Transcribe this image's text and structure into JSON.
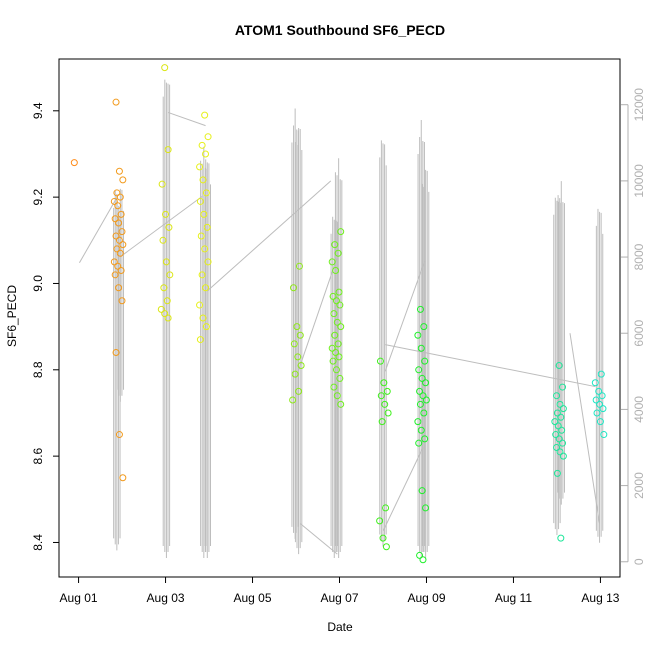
{
  "chart_data": {
    "type": "scatter",
    "title": "ATOM1 Southbound SF6_PECD",
    "xlabel": "Date",
    "ylabel": "SF6_PECD",
    "x_unit": "days since Aug 01",
    "xlim": [
      -0.45,
      12.45
    ],
    "ylim": [
      8.32,
      9.52
    ],
    "y2lim": [
      -400,
      13200
    ],
    "x_ticks": [
      {
        "value": 0,
        "label": "Aug 01"
      },
      {
        "value": 2,
        "label": "Aug 03"
      },
      {
        "value": 4,
        "label": "Aug 05"
      },
      {
        "value": 6,
        "label": "Aug 07"
      },
      {
        "value": 8,
        "label": "Aug 09"
      },
      {
        "value": 10,
        "label": "Aug 11"
      },
      {
        "value": 12,
        "label": "Aug 13"
      }
    ],
    "y_ticks": [
      "8.4",
      "8.6",
      "8.8",
      "9.0",
      "9.2",
      "9.4"
    ],
    "y2_ticks": [
      "0",
      "2000",
      "4000",
      "6000",
      "8000",
      "10000",
      "12000"
    ],
    "secondary_axis_color": "#b0b0b0",
    "altitude_line_color": "#bdbdbd",
    "point_clusters": [
      {
        "x": 0.0,
        "color": "#ff8c1a",
        "values": [
          9.28
        ]
      },
      {
        "x": 0.92,
        "color": "#f29a1c",
        "values": [
          9.42,
          9.26,
          9.24,
          9.21,
          9.2,
          9.19,
          9.18,
          9.16,
          9.15,
          9.14,
          9.12,
          9.11,
          9.1,
          9.09,
          9.08,
          9.07,
          9.05,
          9.04,
          9.03,
          9.02,
          8.99,
          8.96,
          8.84,
          8.65,
          8.55
        ]
      },
      {
        "x": 2.0,
        "color": "#dbe615",
        "values": [
          9.5,
          9.31,
          9.23,
          9.16,
          9.13,
          9.1,
          9.05,
          9.02,
          8.99,
          8.96,
          8.94,
          8.93,
          8.92
        ]
      },
      {
        "x": 2.88,
        "color": "#e6f01a",
        "values": [
          9.39,
          9.34,
          9.32,
          9.3,
          9.27,
          9.24,
          9.21,
          9.19,
          9.16,
          9.13,
          9.11,
          9.08,
          9.05,
          9.02,
          8.99,
          8.95,
          8.92,
          8.9,
          8.87
        ]
      },
      {
        "x": 5.02,
        "color": "#8fe81a",
        "values": [
          9.04,
          8.99,
          8.9,
          8.88,
          8.86,
          8.83,
          8.81,
          8.79,
          8.75,
          8.73
        ]
      },
      {
        "x": 5.93,
        "color": "#6ff01c",
        "values": [
          9.12,
          9.09,
          9.07,
          9.05,
          9.03,
          8.98,
          8.97,
          8.96,
          8.95,
          8.93,
          8.91,
          8.9,
          8.88,
          8.86,
          8.85,
          8.84,
          8.83,
          8.82,
          8.8,
          8.78,
          8.76,
          8.74,
          8.72
        ]
      },
      {
        "x": 7.02,
        "color": "#3ff01c",
        "values": [
          8.82,
          8.77,
          8.75,
          8.74,
          8.72,
          8.7,
          8.68,
          8.48,
          8.45,
          8.41,
          8.39
        ]
      },
      {
        "x": 7.9,
        "color": "#1ef02a",
        "values": [
          8.94,
          8.9,
          8.88,
          8.85,
          8.82,
          8.8,
          8.78,
          8.77,
          8.75,
          8.74,
          8.73,
          8.72,
          8.7,
          8.68,
          8.66,
          8.64,
          8.63,
          8.52,
          8.48,
          8.37,
          8.36
        ]
      },
      {
        "x": 11.05,
        "color": "#1ee69a",
        "values": [
          8.81,
          8.76,
          8.74,
          8.72,
          8.71,
          8.7,
          8.69,
          8.68,
          8.67,
          8.66,
          8.65,
          8.64,
          8.63,
          8.62,
          8.61,
          8.6,
          8.56,
          8.41
        ]
      },
      {
        "x": 11.98,
        "color": "#1ee6c4",
        "values": [
          8.79,
          8.77,
          8.75,
          8.74,
          8.73,
          8.72,
          8.71,
          8.7,
          8.68,
          8.65
        ]
      }
    ],
    "altitude_spikes": [
      {
        "x": 0.88,
        "y_max": 9660,
        "y_min": 300
      },
      {
        "x": 0.96,
        "y_max": 10000,
        "y_min": 4200
      },
      {
        "x": 2.02,
        "y_max": 13000,
        "y_min": 100
      },
      {
        "x": 2.88,
        "y_max": 11000,
        "y_min": 100
      },
      {
        "x": 2.96,
        "y_max": 10800,
        "y_min": 100
      },
      {
        "x": 4.98,
        "y_max": 11900,
        "y_min": 600
      },
      {
        "x": 5.06,
        "y_max": 11600,
        "y_min": 200
      },
      {
        "x": 5.88,
        "y_max": 9400,
        "y_min": 100
      },
      {
        "x": 5.98,
        "y_max": 10700,
        "y_min": 100
      },
      {
        "x": 7.0,
        "y_max": 11300,
        "y_min": 400
      },
      {
        "x": 7.88,
        "y_max": 11600,
        "y_min": 100
      },
      {
        "x": 7.98,
        "y_max": 10500,
        "y_min": 100
      },
      {
        "x": 11.0,
        "y_max": 9900,
        "y_min": 700
      },
      {
        "x": 11.1,
        "y_max": 10100,
        "y_min": 1500
      },
      {
        "x": 11.98,
        "y_max": 9500,
        "y_min": 500
      }
    ],
    "altitude_connectors": [
      [
        0.02,
        7850,
        0.9,
        9600
      ],
      [
        0.95,
        8000,
        2.85,
        9600
      ],
      [
        2.05,
        11800,
        2.92,
        11450
      ],
      [
        2.95,
        7100,
        5.8,
        10000
      ],
      [
        5.05,
        5000,
        5.95,
        8000
      ],
      [
        5.1,
        1000,
        5.95,
        200
      ],
      [
        7.0,
        800,
        7.92,
        3000
      ],
      [
        7.05,
        5000,
        7.96,
        7900
      ],
      [
        7.05,
        5700,
        11.88,
        4600
      ],
      [
        11.3,
        6000,
        11.98,
        1000
      ]
    ]
  }
}
